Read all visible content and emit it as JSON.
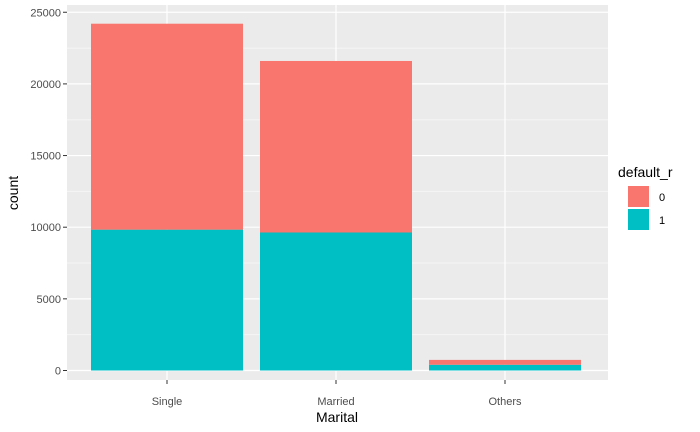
{
  "chart_data": {
    "type": "bar",
    "stacked": true,
    "title": "",
    "xlabel": "Marital",
    "ylabel": "count",
    "categories": [
      "Single",
      "Married",
      "Others"
    ],
    "series": [
      {
        "name": "1",
        "color": "#00BFC4",
        "values": [
          9830,
          9630,
          400
        ]
      },
      {
        "name": "0",
        "color": "#F8766D",
        "values": [
          14370,
          11970,
          340
        ]
      }
    ],
    "ylim": [
      0,
      25000
    ],
    "yticks": [
      0,
      5000,
      10000,
      15000,
      20000,
      25000
    ],
    "ytick_labels": [
      "0",
      "5000",
      "10000",
      "15000",
      "20000",
      "25000"
    ],
    "legend": {
      "title": "default_r",
      "position": "right",
      "entries": [
        {
          "label": "0",
          "color": "#F8766D"
        },
        {
          "label": "1",
          "color": "#00BFC4"
        }
      ]
    },
    "grid": true,
    "panel_color": "#EBEBEB"
  }
}
